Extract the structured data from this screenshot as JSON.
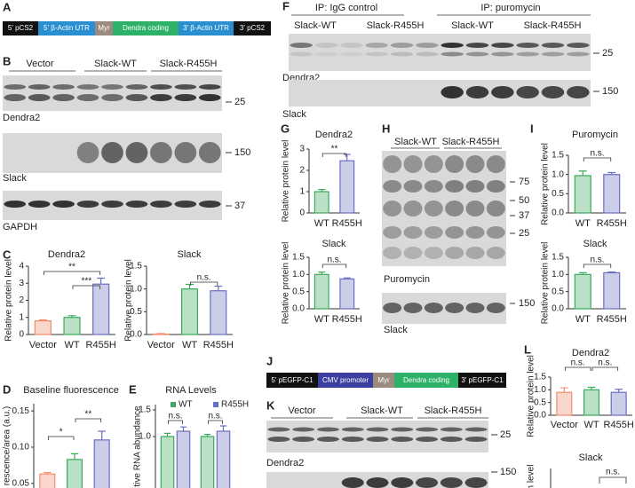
{
  "panels": {
    "A": {
      "letter": "A",
      "construct": [
        "5' pCS2",
        "5' β-Actin UTR",
        "Myr",
        "Dendra coding",
        "3' β-Actin UTR",
        "3' pCS2"
      ]
    },
    "B": {
      "letter": "B",
      "lanes": [
        "Vector",
        "Slack-WT",
        "Slack-R455H"
      ],
      "blots": [
        "Dendra2",
        "Slack",
        "GAPDH"
      ],
      "markers": [
        "25",
        "150",
        "37"
      ]
    },
    "C": {
      "letter": "C"
    },
    "D": {
      "letter": "D"
    },
    "E": {
      "letter": "E"
    },
    "F": {
      "letter": "F",
      "groups": [
        "IP: IgG control",
        "IP: puromycin"
      ],
      "lanes": [
        "Slack-WT",
        "Slack-R455H",
        "Slack-WT",
        "Slack-R455H"
      ],
      "blots": [
        "Dendra2",
        "Slack"
      ],
      "markers": [
        "25",
        "150"
      ]
    },
    "G": {
      "letter": "G"
    },
    "H": {
      "letter": "H",
      "lanes": [
        "Slack-WT",
        "Slack-R455H"
      ],
      "markers": [
        "75",
        "50",
        "37",
        "25",
        "150"
      ],
      "blots": [
        "Puromycin",
        "Slack"
      ]
    },
    "I": {
      "letter": "I"
    },
    "J": {
      "letter": "J",
      "construct": [
        "5' pEGFP-C1",
        "CMV promoter",
        "Myr",
        "Dendra coding",
        "3' pEGFP-C1"
      ]
    },
    "K": {
      "letter": "K",
      "lanes": [
        "Vector",
        "Slack-WT",
        "Slack-R455H"
      ],
      "blots": [
        "Dendra2"
      ],
      "markers": [
        "25",
        "150"
      ]
    },
    "L": {
      "letter": "L",
      "slack_title": "Slack",
      "slack_annotation": "n.s.",
      "slack_ylabel": "n level"
    }
  },
  "chart_data": [
    {
      "type": "bar",
      "title": "Dendra2",
      "ylabel": "Relative protein level",
      "categories": [
        "Vector",
        "WT",
        "R455H"
      ],
      "values": [
        0.8,
        1.0,
        2.95
      ],
      "errors": [
        0.05,
        0.1,
        0.35
      ],
      "colors": [
        "#f08c6c",
        "#3aaa5c",
        "#6a6fbf"
      ],
      "ylim": [
        0,
        4
      ],
      "yticks": [
        0,
        1,
        2,
        3,
        4
      ],
      "annotations": [
        "**",
        "***"
      ]
    },
    {
      "type": "bar",
      "title": "Slack",
      "ylabel": "Relative protein level",
      "categories": [
        "Vector",
        "WT",
        "R455H"
      ],
      "values": [
        0.01,
        1.0,
        0.96
      ],
      "errors": [
        0.01,
        0.1,
        0.1
      ],
      "colors": [
        "#f08c6c",
        "#3aaa5c",
        "#6a6fbf"
      ],
      "ylim": [
        0,
        1.5
      ],
      "yticks": [
        {
          "value": 0,
          "label": "0.0"
        },
        0.5,
        {
          "value": 1,
          "label": "1.0"
        },
        1.5
      ],
      "annotations": [
        "n.s."
      ]
    },
    {
      "type": "bar",
      "title": "Baseline fluorescence",
      "ylabel": "rescence/area (a.u.)",
      "categories": [
        null,
        null,
        null
      ],
      "values": [
        0.063,
        0.083,
        0.11
      ],
      "errors": [
        0.002,
        0.008,
        0.012
      ],
      "colors": [
        "#f08c6c",
        "#3aaa5c",
        "#6a6fbf"
      ],
      "ylim": [
        0.04,
        0.16
      ],
      "yticks": [
        0.05,
        {
          "value": 0.1,
          "label": "0.10"
        },
        0.15
      ],
      "annotations": [
        "*",
        "**"
      ]
    },
    {
      "type": "bar",
      "title": "RNA Levels",
      "ylabel": "tive RNA abundance",
      "categories": [
        null,
        null
      ],
      "series": [
        {
          "name": "WT",
          "color": "#3aaa5c",
          "values": [
            1.0,
            1.0
          ],
          "errors": [
            0.06,
            0.04
          ]
        },
        {
          "name": "R455H",
          "color": "#6a6fbf",
          "values": [
            1.1,
            1.1
          ],
          "errors": [
            0.08,
            0.1
          ]
        }
      ],
      "ylim": [
        0,
        1.6
      ],
      "yticks": [
        {
          "value": 1,
          "label": "1.0"
        },
        1.5
      ],
      "annotations": [
        "n.s.",
        "n.s."
      ]
    },
    {
      "type": "bar",
      "title": "Dendra2",
      "ylabel": "Relative protein level",
      "categories": [
        "WT",
        "R455H"
      ],
      "values": [
        1.0,
        2.45
      ],
      "errors": [
        0.1,
        0.3
      ],
      "colors": [
        "#3aaa5c",
        "#6a6fbf"
      ],
      "ylim": [
        0,
        3
      ],
      "yticks": [
        0,
        1,
        2,
        3
      ],
      "annotations": [
        "**"
      ]
    },
    {
      "type": "bar",
      "title": "Slack",
      "ylabel": "Relative protein level",
      "categories": [
        "WT",
        "R455H"
      ],
      "values": [
        1.0,
        0.87
      ],
      "errors": [
        0.07,
        0.03
      ],
      "colors": [
        "#3aaa5c",
        "#6a6fbf"
      ],
      "ylim": [
        0,
        1.5
      ],
      "yticks": [
        {
          "value": 0,
          "label": "0.0"
        },
        0.5,
        {
          "value": 1,
          "label": "1.0"
        },
        1.5
      ],
      "annotations": [
        "n.s."
      ]
    },
    {
      "type": "bar",
      "title": "Puromycin",
      "ylabel": "Relative protein level",
      "categories": [
        "WT",
        "R455H"
      ],
      "values": [
        0.97,
        1.0
      ],
      "errors": [
        0.12,
        0.05
      ],
      "colors": [
        "#3aaa5c",
        "#6a6fbf"
      ],
      "ylim": [
        0,
        1.5
      ],
      "yticks": [
        {
          "value": 0,
          "label": "0.0"
        },
        0.5,
        {
          "value": 1,
          "label": "1.0"
        },
        1.5
      ],
      "annotations": [
        "n.s."
      ]
    },
    {
      "type": "bar",
      "title": "Slack",
      "ylabel": "Relative protein level",
      "categories": [
        "WT",
        "R455H"
      ],
      "values": [
        1.0,
        1.05
      ],
      "errors": [
        0.05,
        0.02
      ],
      "colors": [
        "#3aaa5c",
        "#6a6fbf"
      ],
      "ylim": [
        0,
        1.5
      ],
      "yticks": [
        {
          "value": 0,
          "label": "0.0"
        },
        0.5,
        {
          "value": 1,
          "label": "1.0"
        },
        1.5
      ],
      "annotations": [
        "n.s."
      ]
    },
    {
      "type": "bar",
      "title": "Dendra2",
      "ylabel": "Relative protein level",
      "categories": [
        "Vector",
        "WT",
        "R455H"
      ],
      "values": [
        0.9,
        1.0,
        0.9
      ],
      "errors": [
        0.18,
        0.1,
        0.12
      ],
      "colors": [
        "#f08c6c",
        "#3aaa5c",
        "#6a6fbf"
      ],
      "ylim": [
        0,
        1.5
      ],
      "yticks": [
        {
          "value": 0,
          "label": "0.0"
        },
        0.5,
        {
          "value": 1,
          "label": "1.0"
        },
        1.5
      ],
      "annotations": [
        "n.s.",
        "n.s."
      ]
    }
  ]
}
